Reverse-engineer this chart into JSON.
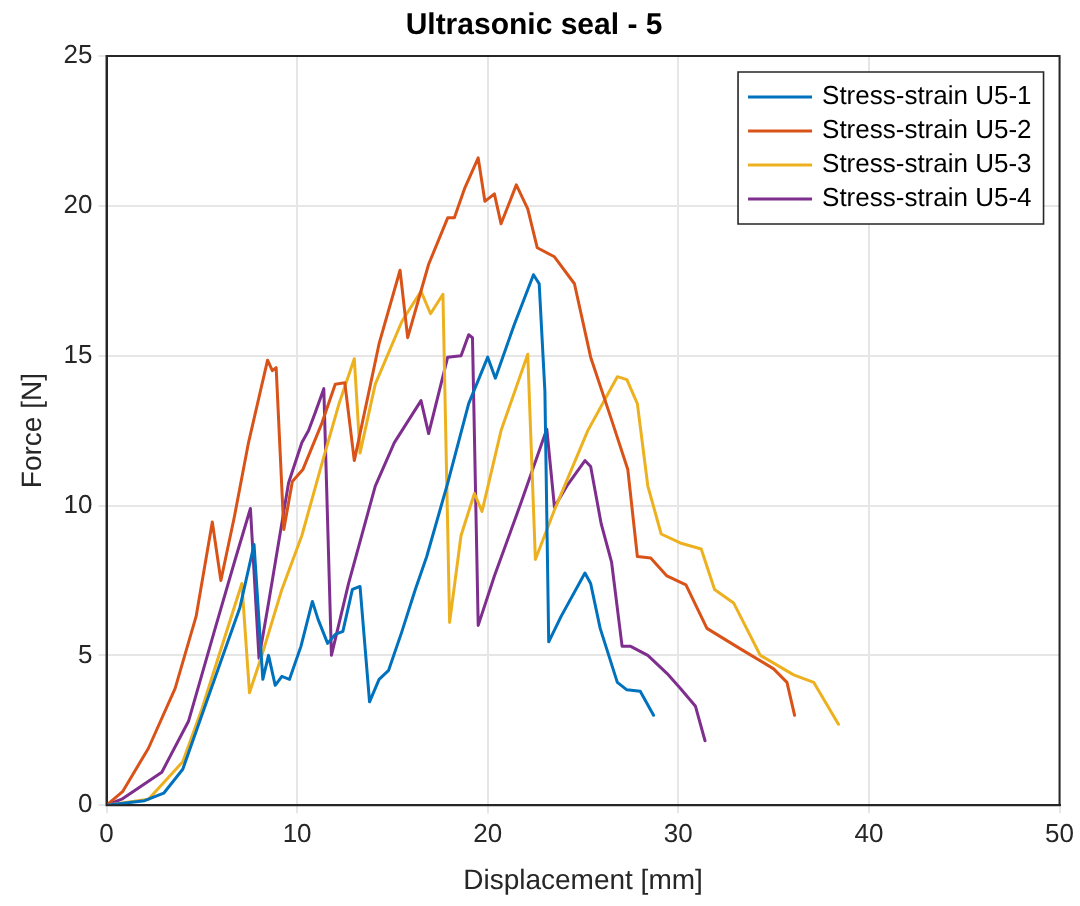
{
  "chart_data": {
    "type": "line",
    "title": "Ultrasonic seal - 5",
    "xlabel": "Displacement [mm]",
    "ylabel": "Force [N]",
    "xlim": [
      0,
      50
    ],
    "xticks": [
      0,
      10,
      20,
      30,
      40,
      50
    ],
    "ylim": [
      0,
      25
    ],
    "yticks": [
      0,
      5,
      10,
      15,
      20,
      25
    ],
    "grid": true,
    "legend": "top right",
    "marker": "none",
    "line_style": "solid",
    "series": [
      {
        "name": "Stress-strain U5-1",
        "color": "#0072bd",
        "x": [
          0,
          2,
          3,
          4,
          5,
          6,
          7,
          7.74,
          8.2,
          8.5,
          8.85,
          9.2,
          9.6,
          10.2,
          10.8,
          11.1,
          11.6,
          12.0,
          12.4,
          12.9,
          13.3,
          13.8,
          14.3,
          14.8,
          15.5,
          16.2,
          16.8,
          17.9,
          19.0,
          20.0,
          20.4,
          21.4,
          22.4,
          22.7,
          23.0,
          23.2,
          23.85,
          25.1,
          25.4,
          25.9,
          26.8,
          27.3,
          28.0,
          28.7
        ],
        "values": [
          0,
          0.15,
          0.4,
          1.2,
          3,
          4.8,
          6.6,
          8.7,
          4.2,
          5.0,
          4.0,
          4.3,
          4.2,
          5.3,
          6.8,
          6.2,
          5.4,
          5.7,
          5.8,
          7.2,
          7.3,
          3.45,
          4.2,
          4.5,
          5.8,
          7.2,
          8.3,
          10.75,
          13.4,
          14.95,
          14.25,
          16.05,
          17.7,
          17.4,
          13.8,
          5.45,
          6.3,
          7.75,
          7.4,
          5.9,
          4.1,
          3.85,
          3.8,
          3.0
        ]
      },
      {
        "name": "Stress-strain U5-2",
        "color": "#d95319",
        "x": [
          0,
          0.84,
          2.2,
          3.6,
          4.7,
          5.55,
          6.0,
          6.7,
          7.45,
          8.45,
          8.7,
          8.9,
          9.3,
          9.75,
          10.3,
          11.3,
          12.0,
          12.5,
          13.0,
          13.4,
          14.3,
          15.4,
          15.8,
          16.9,
          17.9,
          18.25,
          18.8,
          19.5,
          19.85,
          20.35,
          20.7,
          21.5,
          22.1,
          22.6,
          23.5,
          24.55,
          25.4,
          26.45,
          27.35,
          27.85,
          28.55,
          29.4,
          30.4,
          31.5,
          33.3,
          35.0,
          35.7,
          36.1
        ],
        "values": [
          0,
          0.45,
          1.9,
          3.9,
          6.3,
          9.45,
          7.5,
          9.6,
          12.1,
          14.85,
          14.5,
          14.6,
          9.2,
          10.8,
          11.2,
          12.75,
          14.05,
          14.1,
          11.5,
          12.7,
          15.4,
          17.85,
          15.6,
          18.05,
          19.6,
          19.6,
          20.6,
          21.6,
          20.15,
          20.4,
          19.4,
          20.7,
          19.9,
          18.6,
          18.3,
          17.4,
          14.95,
          12.95,
          11.2,
          8.3,
          8.25,
          7.65,
          7.35,
          5.9,
          5.2,
          4.55,
          4.1,
          3.0
        ]
      },
      {
        "name": "Stress-strain U5-3",
        "color": "#edb120",
        "x": [
          0,
          2.2,
          4.0,
          5.0,
          7.1,
          7.5,
          8.15,
          9.2,
          10.25,
          11.3,
          12.2,
          13.0,
          13.3,
          14.1,
          15.5,
          16.5,
          17.0,
          17.65,
          18.0,
          18.6,
          19.3,
          19.7,
          20.7,
          22.1,
          22.5,
          23.5,
          25.25,
          26.8,
          27.3,
          27.85,
          28.4,
          29.1,
          30.1,
          31.2,
          31.9,
          32.9,
          34.3,
          36.05,
          37.1,
          38.4
        ],
        "values": [
          0,
          0.2,
          1.45,
          3.2,
          7.4,
          3.75,
          5.0,
          7.2,
          9.0,
          11.4,
          13.4,
          14.9,
          11.75,
          14.05,
          16.15,
          17.15,
          16.4,
          17.05,
          6.1,
          9.0,
          10.4,
          9.8,
          12.5,
          15.05,
          8.2,
          9.85,
          12.5,
          14.3,
          14.2,
          13.4,
          10.65,
          9.05,
          8.75,
          8.55,
          7.2,
          6.75,
          5.0,
          4.35,
          4.1,
          2.7
        ]
      },
      {
        "name": "Stress-strain U5-4",
        "color": "#7e2f8e",
        "x": [
          0,
          0.8,
          2.9,
          4.3,
          5.7,
          6.75,
          7.55,
          8.0,
          8.5,
          9.55,
          10.25,
          10.6,
          10.95,
          11.4,
          11.8,
          12.7,
          14.1,
          15.1,
          16.5,
          16.9,
          17.9,
          18.6,
          19.0,
          19.2,
          19.5,
          20.35,
          21.75,
          23.1,
          23.5,
          24.2,
          25.1,
          25.4,
          25.95,
          26.5,
          27.05,
          27.5,
          28.4,
          29.4,
          30.1,
          30.9,
          31.4
        ],
        "values": [
          0,
          0.2,
          1.1,
          2.8,
          5.9,
          8.2,
          9.9,
          4.9,
          6.75,
          10.75,
          12.1,
          12.5,
          13.1,
          13.9,
          5.0,
          7.4,
          10.65,
          12.1,
          13.5,
          12.4,
          14.95,
          15.0,
          15.7,
          15.6,
          6.0,
          7.65,
          10.1,
          12.55,
          9.95,
          10.7,
          11.5,
          11.3,
          9.4,
          8.1,
          5.3,
          5.3,
          5.0,
          4.4,
          3.9,
          3.3,
          2.15
        ]
      }
    ]
  }
}
